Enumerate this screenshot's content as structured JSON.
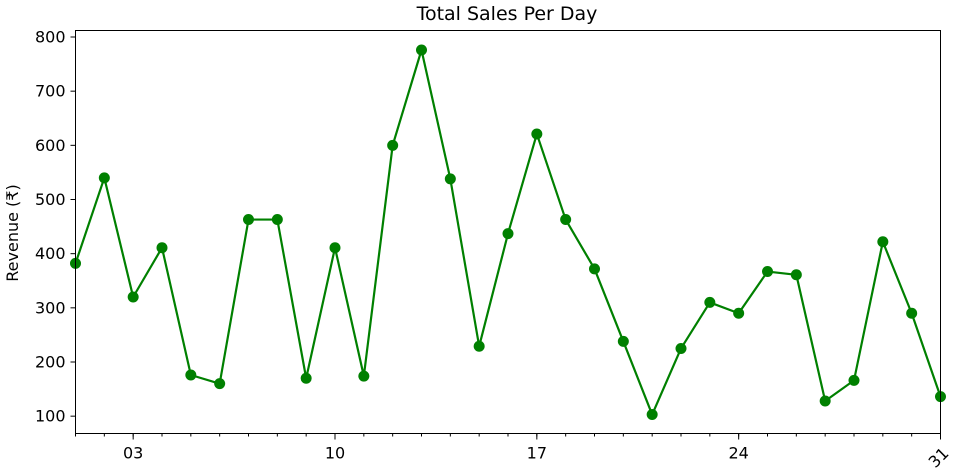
{
  "chart_data": {
    "type": "line",
    "title": "Total Sales Per Day",
    "xlabel": "",
    "ylabel": "Revenue (₹)",
    "x_major_ticks": [
      {
        "day": 3,
        "label": "03"
      },
      {
        "day": 10,
        "label": "10"
      },
      {
        "day": 17,
        "label": "17"
      },
      {
        "day": 24,
        "label": "24"
      },
      {
        "day": 31,
        "label": "31"
      }
    ],
    "y_ticks": [
      100,
      200,
      300,
      400,
      500,
      600,
      700,
      800
    ],
    "xlim": [
      1,
      31
    ],
    "ylim": [
      68,
      812
    ],
    "grid": false,
    "legend": "none",
    "color": "#008000",
    "x": [
      1,
      2,
      3,
      4,
      5,
      6,
      7,
      8,
      9,
      10,
      11,
      12,
      13,
      14,
      15,
      16,
      17,
      18,
      19,
      20,
      21,
      22,
      23,
      24,
      25,
      26,
      27,
      28,
      29,
      30,
      31
    ],
    "values": [
      382,
      540,
      320,
      411,
      176,
      160,
      463,
      463,
      170,
      411,
      174,
      600,
      776,
      538,
      229,
      437,
      621,
      463,
      372,
      238,
      103,
      225,
      310,
      290,
      367,
      361,
      128,
      166,
      422,
      290,
      136
    ]
  }
}
